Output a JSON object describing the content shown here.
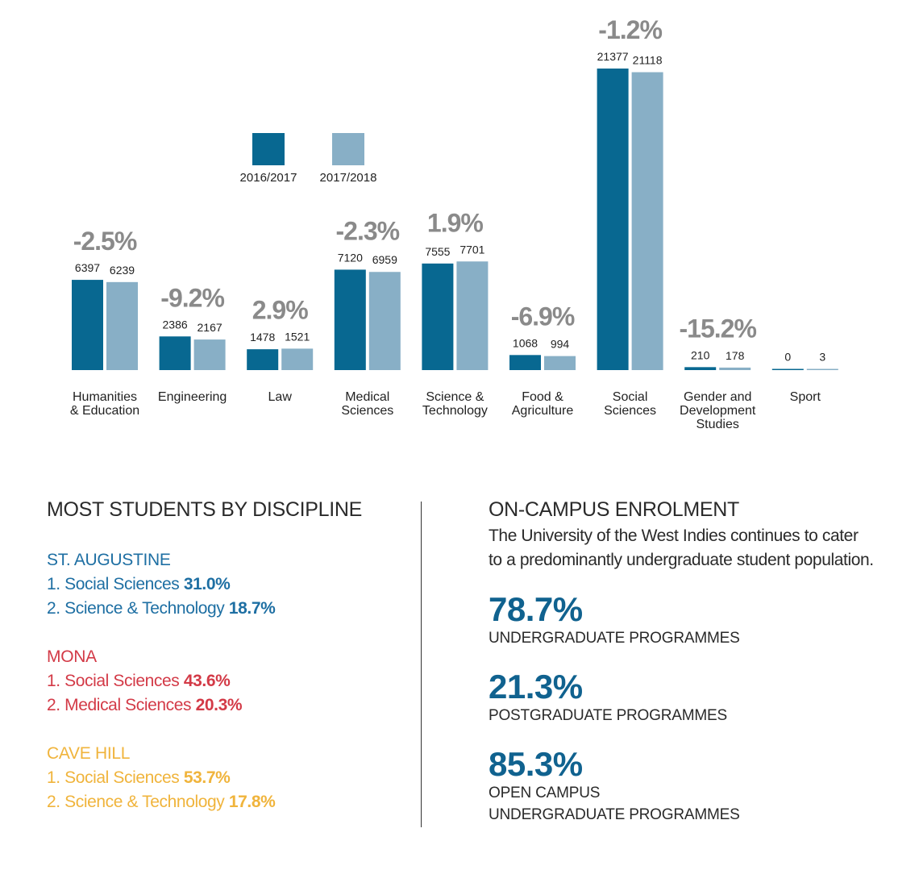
{
  "colors": {
    "series_2016": "#086891",
    "series_2017": "#88afc6",
    "pct_text": "#8a8a8a",
    "st_augustine": "#1e6fa3",
    "mona": "#d33a47",
    "cave_hill": "#f0b43c",
    "stat_blue": "#10628f"
  },
  "chart_data": {
    "type": "bar",
    "categories": [
      [
        "Humanities",
        "& Education"
      ],
      [
        "Engineering"
      ],
      [
        "Law"
      ],
      [
        "Medical",
        "Sciences"
      ],
      [
        "Science &",
        "Technology"
      ],
      [
        "Food &",
        "Agriculture"
      ],
      [
        "Social",
        "Sciences"
      ],
      [
        "Gender and",
        "Development",
        "Studies"
      ],
      [
        "Sport"
      ]
    ],
    "series": [
      {
        "name": "2016/2017",
        "values": [
          6397,
          2386,
          1478,
          7120,
          7555,
          1068,
          21377,
          210,
          0
        ]
      },
      {
        "name": "2017/2018",
        "values": [
          6239,
          2167,
          1521,
          6959,
          7701,
          994,
          21118,
          178,
          3
        ]
      }
    ],
    "change_labels": [
      "-2.5%",
      "-9.2%",
      "2.9%",
      "-2.3%",
      "1.9%",
      "-6.9%",
      "-1.2%",
      "-15.2%",
      ""
    ],
    "legend": [
      "2016/2017",
      "2017/2018"
    ],
    "legend_position": "top-center",
    "grid": false
  },
  "discipline": {
    "title": "MOST STUDENTS BY DISCIPLINE",
    "campuses": [
      {
        "name": "ST. AUGUSTINE",
        "items": [
          {
            "label": "1. Social Sciences",
            "value": "31.0%"
          },
          {
            "label": "2. Science & Technology",
            "value": "18.7%"
          }
        ]
      },
      {
        "name": "MONA",
        "items": [
          {
            "label": "1. Social Sciences",
            "value": "43.6%"
          },
          {
            "label": "2. Medical Sciences",
            "value": "20.3%"
          }
        ]
      },
      {
        "name": "CAVE HILL",
        "items": [
          {
            "label": "1. Social Sciences",
            "value": "53.7%"
          },
          {
            "label": "2. Science & Technology",
            "value": "17.8%"
          }
        ]
      }
    ]
  },
  "enrolment": {
    "title": "ON-CAMPUS ENROLMENT",
    "description_lines": [
      "The University of the West Indies continues to cater",
      "to a predominantly undergraduate student population."
    ],
    "stats": [
      {
        "value": "78.7%",
        "label_lines": [
          "UNDERGRADUATE PROGRAMMES"
        ]
      },
      {
        "value": "21.3%",
        "label_lines": [
          "POSTGRADUATE PROGRAMMES"
        ]
      },
      {
        "value": "85.3%",
        "label_lines": [
          "OPEN CAMPUS",
          "UNDERGRADUATE PROGRAMMES"
        ]
      }
    ]
  }
}
